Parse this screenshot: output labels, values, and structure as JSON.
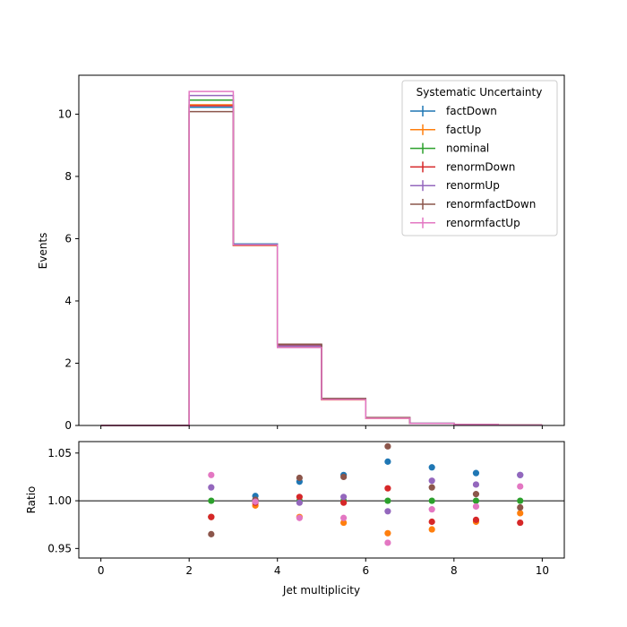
{
  "chart_data": [
    {
      "type": "line",
      "ylabel": "Events",
      "xlim": [
        -0.5,
        10.5
      ],
      "ylim": [
        0,
        11.25
      ],
      "bin_edges": [
        0,
        1,
        2,
        3,
        4,
        5,
        6,
        7,
        8,
        9,
        10
      ],
      "yticks": [
        0,
        2,
        4,
        6,
        8,
        10
      ],
      "legend": {
        "title": "Systematic Uncertainty",
        "position": "top-right"
      },
      "series": [
        {
          "name": "factDown",
          "color": "#1f77b4",
          "values": [
            0,
            0,
            10.22,
            5.83,
            2.6,
            0.86,
            0.25,
            0.068,
            0.03,
            0.012
          ]
        },
        {
          "name": "factUp",
          "color": "#ff7f0e",
          "values": [
            0,
            0,
            10.3,
            5.78,
            2.51,
            0.825,
            0.232,
            0.0645,
            0.0285,
            0.0115
          ]
        },
        {
          "name": "nominal",
          "color": "#2ca02c",
          "values": [
            0,
            0,
            10.45,
            5.8,
            2.55,
            0.845,
            0.24,
            0.0665,
            0.0292,
            0.0117
          ]
        },
        {
          "name": "renormDown",
          "color": "#d62728",
          "values": [
            0,
            0,
            10.27,
            5.79,
            2.56,
            0.843,
            0.243,
            0.065,
            0.0286,
            0.0114
          ]
        },
        {
          "name": "renormUp",
          "color": "#9467bd",
          "values": [
            0,
            0,
            10.6,
            5.81,
            2.545,
            0.848,
            0.237,
            0.068,
            0.0297,
            0.012
          ]
        },
        {
          "name": "renormfactDown",
          "color": "#8c564b",
          "values": [
            0,
            0,
            10.08,
            5.8,
            2.61,
            0.866,
            0.254,
            0.0675,
            0.0294,
            0.0116
          ]
        },
        {
          "name": "renormfactUp",
          "color": "#e377c2",
          "values": [
            0,
            0,
            10.73,
            5.8,
            2.505,
            0.83,
            0.229,
            0.066,
            0.029,
            0.0119
          ]
        }
      ]
    },
    {
      "type": "scatter",
      "xlabel": "Jet multiplicity",
      "ylabel": "Ratio",
      "xlim": [
        -0.5,
        10.5
      ],
      "ylim": [
        0.94,
        1.062
      ],
      "xticks": [
        0,
        2,
        4,
        6,
        8,
        10
      ],
      "yticks": [
        0.95,
        1.0,
        1.05
      ],
      "ytick_labels": [
        "0.95",
        "1.00",
        "1.05"
      ],
      "reference_line": 1.0,
      "x": [
        2.5,
        3.5,
        4.5,
        5.5,
        6.5,
        7.5,
        8.5,
        9.5
      ],
      "series": [
        {
          "name": "factDown",
          "color": "#1f77b4",
          "values": [
            0.983,
            1.005,
            1.02,
            1.027,
            1.041,
            1.035,
            1.029,
            1.027
          ]
        },
        {
          "name": "factUp",
          "color": "#ff7f0e",
          "values": [
            0.983,
            0.995,
            0.983,
            0.977,
            0.966,
            0.97,
            0.978,
            0.987
          ]
        },
        {
          "name": "nominal",
          "color": "#2ca02c",
          "values": [
            1.0,
            1.0,
            1.0,
            1.0,
            1.0,
            1.0,
            1.0,
            1.0
          ]
        },
        {
          "name": "renormDown",
          "color": "#d62728",
          "values": [
            0.983,
            0.998,
            1.004,
            0.998,
            1.013,
            0.978,
            0.98,
            0.977
          ]
        },
        {
          "name": "renormUp",
          "color": "#9467bd",
          "values": [
            1.014,
            1.001,
            0.998,
            1.004,
            0.989,
            1.021,
            1.017,
            1.027
          ]
        },
        {
          "name": "renormfactDown",
          "color": "#8c564b",
          "values": [
            0.965,
            1.001,
            1.024,
            1.025,
            1.057,
            1.014,
            1.007,
            0.993
          ]
        },
        {
          "name": "renormfactUp",
          "color": "#e377c2",
          "values": [
            1.027,
            0.999,
            0.982,
            0.982,
            0.956,
            0.991,
            0.994,
            1.015
          ]
        }
      ]
    }
  ]
}
